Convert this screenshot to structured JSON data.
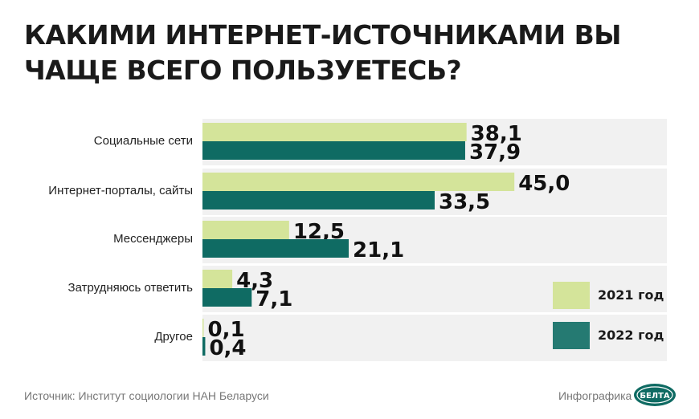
{
  "title": "КАКИМИ ИНТЕРНЕТ-ИСТОЧНИКАМИ ВЫ ЧАЩЕ ВСЕГО ПОЛЬЗУЕТЕСЬ?",
  "chart_data": {
    "type": "bar",
    "orientation": "horizontal",
    "categories": [
      "Социальные сети",
      "Интернет-порталы, сайты",
      "Мессенджеры",
      "Затрудняюсь ответить",
      "Другое"
    ],
    "series": [
      {
        "name": "2021 год",
        "color": "#d4e49a",
        "values": [
          38.1,
          45.0,
          12.5,
          4.3,
          0.1
        ],
        "labels": [
          "38,1",
          "45,0",
          "12,5",
          "4,3",
          "0,1"
        ]
      },
      {
        "name": "2022 год",
        "color": "#0f6b63",
        "values": [
          37.9,
          33.5,
          21.1,
          7.1,
          0.4
        ],
        "labels": [
          "37,9",
          "33,5",
          "21,1",
          "7,1",
          "0,4"
        ]
      }
    ],
    "xlim": [
      0,
      67
    ],
    "grid": false,
    "legend": "bottom-right"
  },
  "legend": [
    {
      "label": "2021 год",
      "color": "#d4e49a"
    },
    {
      "label": "2022 год",
      "color": "#257a72"
    }
  ],
  "footer": {
    "source": "Источник: Институт социологии НАН Беларуси",
    "credit": "Инфографика",
    "logo_text": "БЕЛТА"
  }
}
